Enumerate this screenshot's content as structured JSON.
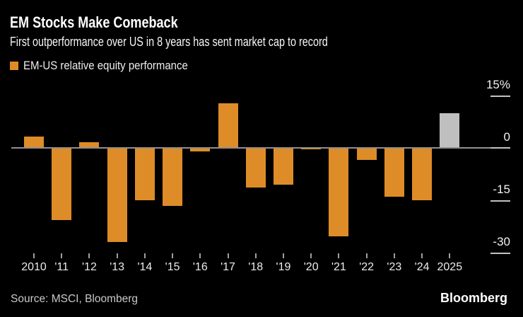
{
  "header": {
    "title": "EM Stocks Make Comeback",
    "subtitle": "First outperformance over US in 8 years has sent market cap to record"
  },
  "legend": {
    "label": "EM-US relative equity performance",
    "swatch_color": "#DE8C28"
  },
  "footer": {
    "source": "Source: MSCI, Bloomberg",
    "logo": "Bloomberg"
  },
  "colors": {
    "background": "#000000",
    "bar": "#DE8C28",
    "highlight_bar": "#BFBFBF",
    "zero_line": "#8F8F8F",
    "axis_tick": "#C2C2C2",
    "text": "#FFFFFF"
  },
  "chart_data": {
    "type": "bar",
    "title": "EM Stocks Make Comeback",
    "subtitle": "First outperformance over US in 8 years has sent market cap to record",
    "series_name": "EM-US relative equity performance",
    "categories": [
      "2010",
      "'11",
      "'12",
      "'13",
      "'14",
      "'15",
      "'16",
      "'17",
      "'18",
      "'19",
      "'20",
      "'21",
      "'22",
      "'23",
      "'24",
      "2025"
    ],
    "values": [
      3.3,
      -20.7,
      1.6,
      -27,
      -15,
      -16.7,
      -1,
      12.8,
      -11.3,
      -10.6,
      -0.5,
      -25.4,
      -3.4,
      -14,
      -15.1,
      10
    ],
    "unit": "%",
    "highlight_index": 15,
    "xlabel": "",
    "ylabel": "",
    "ylim": [
      -33,
      17
    ],
    "yticks": [
      {
        "value": 15,
        "label": "15%"
      },
      {
        "value": 0,
        "label": "0"
      },
      {
        "value": -15,
        "label": "-15"
      },
      {
        "value": -30,
        "label": "-30"
      }
    ],
    "grid": false,
    "legend_position": "top-left",
    "axis_side": "right"
  }
}
